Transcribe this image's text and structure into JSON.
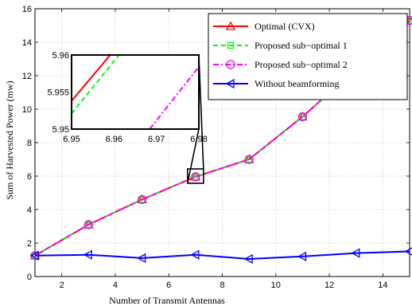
{
  "chart_data": {
    "type": "line",
    "xlabel": "Number of Transmit Antennas",
    "ylabel": "Sum of Harvested Power (mw)",
    "xlim": [
      1,
      15
    ],
    "ylim": [
      0,
      16
    ],
    "xticks": [
      2,
      4,
      6,
      8,
      10,
      12,
      14
    ],
    "yticks": [
      0,
      2,
      4,
      6,
      8,
      10,
      12,
      14,
      16
    ],
    "grid": true,
    "legend_position": "top-right",
    "x": [
      1,
      3,
      5,
      7,
      9,
      11,
      13,
      15
    ],
    "series": [
      {
        "name": "Optimal (CVX)",
        "color": "#ff0000",
        "style": "solid",
        "marker": "triangle-up",
        "values": [
          1.25,
          3.1,
          4.6,
          5.96,
          7.0,
          9.55,
          12.4,
          15.3
        ]
      },
      {
        "name": "Proposed sub−optimal 1",
        "color": "#00ff00",
        "style": "dashed",
        "marker": "square",
        "values": [
          1.25,
          3.1,
          4.6,
          5.96,
          7.0,
          9.55,
          12.4,
          15.3
        ]
      },
      {
        "name": "Proposed sub−optimal 2",
        "color": "#ff00ff",
        "style": "dashdot",
        "marker": "circle",
        "values": [
          1.25,
          3.1,
          4.6,
          5.96,
          7.0,
          9.55,
          12.4,
          15.3
        ]
      },
      {
        "name": "Without beamforming",
        "color": "#0000ff",
        "style": "solid",
        "marker": "triangle-left",
        "values": [
          1.25,
          1.3,
          1.1,
          1.3,
          1.05,
          1.2,
          1.4,
          1.5
        ]
      }
    ],
    "inset": {
      "xlim": [
        6.95,
        6.98
      ],
      "ylim": [
        5.95,
        5.96
      ],
      "xticks": [
        "6.95",
        "6.96",
        "6.97",
        "6.98"
      ],
      "yticks": [
        "5.95",
        "5.955",
        "5.96"
      ],
      "zoom_center": [
        7,
        6
      ],
      "lines": [
        {
          "series": "Optimal (CVX)",
          "points": [
            [
              6.95,
              5.9538
            ],
            [
              6.9591,
              5.96
            ]
          ]
        },
        {
          "series": "Proposed sub−optimal 1",
          "points": [
            [
              6.95,
              5.9521
            ],
            [
              6.9612,
              5.96
            ]
          ]
        },
        {
          "series": "Proposed sub−optimal 2",
          "points": [
            [
              6.9684,
              5.95
            ],
            [
              6.98,
              5.9584
            ]
          ]
        }
      ]
    }
  }
}
